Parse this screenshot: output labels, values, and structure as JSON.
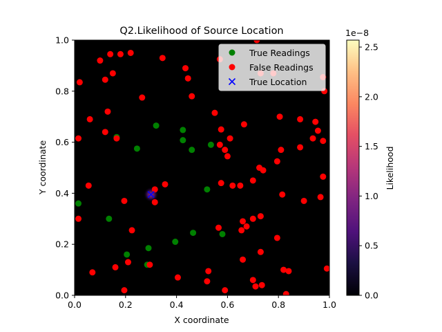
{
  "chart_data": {
    "type": "scatter",
    "title": "Q2.Likelihood of Source Location",
    "xlabel": "X coordinate",
    "ylabel": "Y coordinate",
    "xlim": [
      0,
      1
    ],
    "ylim": [
      0,
      1
    ],
    "xticks": [
      "0.0",
      "0.2",
      "0.4",
      "0.6",
      "0.8",
      "1.0"
    ],
    "yticks": [
      "0.0",
      "0.2",
      "0.4",
      "0.6",
      "0.8",
      "1.0"
    ],
    "grid": false,
    "background": "#000000",
    "legend_position": "top-right",
    "heatmap_peak": {
      "x": 0.3,
      "y": 0.395
    },
    "colorbar": {
      "label": "Likelihood",
      "offset_text": "1e−8",
      "range": [
        0,
        2.57
      ],
      "ticks": [
        "0.0",
        "0.5",
        "1.0",
        "1.5",
        "2.0",
        "2.5"
      ],
      "colormap": "magma"
    },
    "series": [
      {
        "name": "True Readings",
        "marker": "circle",
        "color": "#008000",
        "points": [
          [
            0.015,
            0.36
          ],
          [
            0.135,
            0.3
          ],
          [
            0.165,
            0.62
          ],
          [
            0.205,
            0.16
          ],
          [
            0.245,
            0.575
          ],
          [
            0.285,
            0.12
          ],
          [
            0.29,
            0.185
          ],
          [
            0.32,
            0.665
          ],
          [
            0.395,
            0.21
          ],
          [
            0.425,
            0.648
          ],
          [
            0.425,
            0.608
          ],
          [
            0.46,
            0.57
          ],
          [
            0.465,
            0.245
          ],
          [
            0.52,
            0.415
          ],
          [
            0.535,
            0.59
          ],
          [
            0.58,
            0.24
          ]
        ]
      },
      {
        "name": "False Readings",
        "marker": "circle",
        "color": "#ff0000",
        "points": [
          [
            0.02,
            0.835
          ],
          [
            0.015,
            0.615
          ],
          [
            0.015,
            0.3
          ],
          [
            0.06,
            0.69
          ],
          [
            0.055,
            0.43
          ],
          [
            0.07,
            0.09
          ],
          [
            0.1,
            0.92
          ],
          [
            0.12,
            0.845
          ],
          [
            0.14,
            0.945
          ],
          [
            0.15,
            0.87
          ],
          [
            0.13,
            0.72
          ],
          [
            0.12,
            0.64
          ],
          [
            0.18,
            0.945
          ],
          [
            0.22,
            0.95
          ],
          [
            0.165,
            0.615
          ],
          [
            0.195,
            0.37
          ],
          [
            0.16,
            0.11
          ],
          [
            0.21,
            0.13
          ],
          [
            0.195,
            0.02
          ],
          [
            0.225,
            0.255
          ],
          [
            0.265,
            0.775
          ],
          [
            0.345,
            0.93
          ],
          [
            0.435,
            0.89
          ],
          [
            0.445,
            0.85
          ],
          [
            0.46,
            0.78
          ],
          [
            0.355,
            0.435
          ],
          [
            0.315,
            0.415
          ],
          [
            0.315,
            0.365
          ],
          [
            0.295,
            0.12
          ],
          [
            0.405,
            0.07
          ],
          [
            0.525,
            0.095
          ],
          [
            0.52,
            0.055
          ],
          [
            0.55,
            0.715
          ],
          [
            0.57,
            0.925
          ],
          [
            0.575,
            0.65
          ],
          [
            0.57,
            0.59
          ],
          [
            0.59,
            0.57
          ],
          [
            0.6,
            0.545
          ],
          [
            0.61,
            0.615
          ],
          [
            0.575,
            0.44
          ],
          [
            0.62,
            0.43
          ],
          [
            0.65,
            0.43
          ],
          [
            0.565,
            0.265
          ],
          [
            0.655,
            0.255
          ],
          [
            0.66,
            0.29
          ],
          [
            0.675,
            0.27
          ],
          [
            0.665,
            0.67
          ],
          [
            0.7,
            0.45
          ],
          [
            0.7,
            0.3
          ],
          [
            0.73,
            0.31
          ],
          [
            0.725,
            0.5
          ],
          [
            0.74,
            0.49
          ],
          [
            0.715,
            1.0
          ],
          [
            0.73,
            0.17
          ],
          [
            0.66,
            0.14
          ],
          [
            0.7,
            0.06
          ],
          [
            0.71,
            0.035
          ],
          [
            0.735,
            0.04
          ],
          [
            0.59,
            0.02
          ],
          [
            0.795,
            0.225
          ],
          [
            0.795,
            0.525
          ],
          [
            0.81,
            0.57
          ],
          [
            0.805,
            0.7
          ],
          [
            0.815,
            0.395
          ],
          [
            0.82,
            0.1
          ],
          [
            0.84,
            0.095
          ],
          [
            0.83,
            0.005
          ],
          [
            0.78,
            0.87
          ],
          [
            0.885,
            0.69
          ],
          [
            0.885,
            0.58
          ],
          [
            0.9,
            0.37
          ],
          [
            0.935,
            0.615
          ],
          [
            0.945,
            0.68
          ],
          [
            0.955,
            0.645
          ],
          [
            0.975,
            0.605
          ],
          [
            0.965,
            0.385
          ],
          [
            0.975,
            0.465
          ],
          [
            0.975,
            0.855
          ],
          [
            0.98,
            0.8
          ],
          [
            0.99,
            0.105
          ],
          [
            0.73,
            0.87
          ]
        ]
      },
      {
        "name": "True Location",
        "marker": "x",
        "color": "#0000ff",
        "points": [
          [
            0.3,
            0.395
          ]
        ]
      }
    ]
  }
}
